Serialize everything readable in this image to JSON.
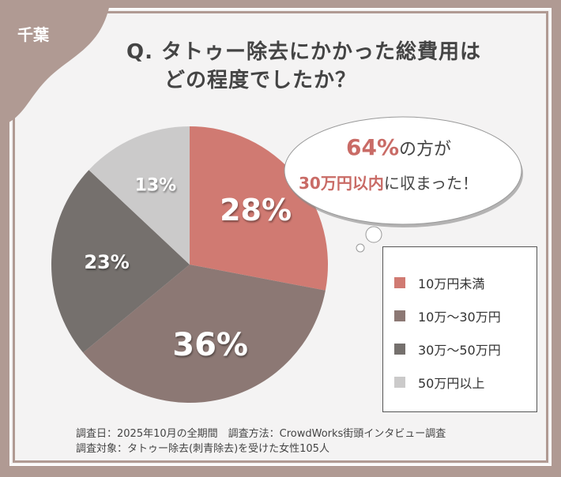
{
  "badge": "千葉",
  "title": {
    "line1": "Q. タトゥー除去にかかった総費用は",
    "line2": "どの程度でしたか？"
  },
  "callout": {
    "pct": "64%",
    "line1_rest": "の方が",
    "line2_hl": "30万円以内",
    "line2_rest": "に収まった！"
  },
  "chart_data": {
    "type": "pie",
    "title": "タトゥー除去にかかった総費用",
    "categories": [
      "10万円未満",
      "10万～30万円",
      "30万～50万円",
      "50万円以上"
    ],
    "values": [
      28,
      36,
      23,
      13
    ],
    "labels": [
      "28%",
      "36%",
      "23%",
      "13%"
    ],
    "colors": [
      "#d07a72",
      "#8c7874",
      "#75706d",
      "#cbcaca"
    ],
    "legend": "right"
  },
  "footer": {
    "line1": "調査日：2025年10月の全期間　調査方法：CrowdWorks街頭インタビュー調査",
    "line2": "調査対象：タトゥー除去(刺青除去)を受けた女性105人"
  }
}
